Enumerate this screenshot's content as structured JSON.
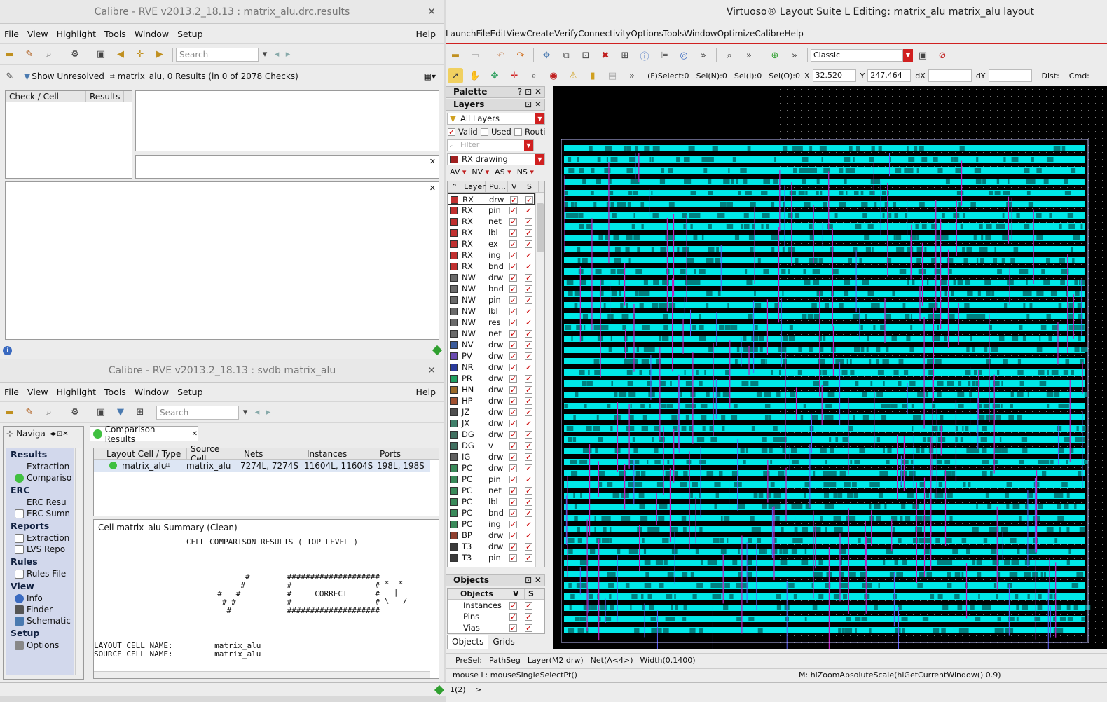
{
  "drc": {
    "title": "Calibre - RVE v2013.2_18.13 : matrix_alu.drc.results",
    "menu": [
      "File",
      "View",
      "Highlight",
      "Tools",
      "Window",
      "Setup"
    ],
    "help": "Help",
    "search_placeholder": "Search",
    "show_unresolved": "Show Unresolved",
    "summary": "matrix_alu, 0 Results (in 0 of 2078 Checks)",
    "col_check": "Check / Cell",
    "col_results": "Results"
  },
  "lvs": {
    "title": "Calibre - RVE v2013.2_18.13 : svdb matrix_alu",
    "menu": [
      "File",
      "View",
      "Highlight",
      "Tools",
      "Window",
      "Setup"
    ],
    "help": "Help",
    "search_placeholder": "Search",
    "nav_tab": "Naviga",
    "nav": [
      {
        "section": "Results",
        "items": [
          {
            "label": "Extraction",
            "icon": "extraction-icon"
          },
          {
            "label": "Compariso",
            "icon": "comparison-smiley-icon"
          }
        ]
      },
      {
        "section": "ERC",
        "items": [
          {
            "label": "ERC Resu",
            "icon": "check-icon"
          },
          {
            "label": "ERC Sumn",
            "icon": "document-icon"
          }
        ]
      },
      {
        "section": "Reports",
        "items": [
          {
            "label": "Extraction",
            "icon": "document-icon"
          },
          {
            "label": "LVS Repo",
            "icon": "document-icon"
          }
        ]
      },
      {
        "section": "Rules",
        "items": [
          {
            "label": "Rules File",
            "icon": "rules-icon"
          }
        ]
      },
      {
        "section": "View",
        "items": [
          {
            "label": "Info",
            "icon": "info-icon"
          },
          {
            "label": "Finder",
            "icon": "binoculars-icon"
          },
          {
            "label": "Schematic",
            "icon": "schematic-icon"
          }
        ]
      },
      {
        "section": "Setup",
        "items": [
          {
            "label": "Options",
            "icon": "options-icon"
          }
        ]
      }
    ],
    "tab_label": "Comparison Results",
    "columns": [
      "Layout Cell / Type",
      "Source Cell",
      "Nets",
      "Instances",
      "Ports"
    ],
    "row": {
      "layout_cell": "matrix_alu",
      "source_cell": "matrix_alu",
      "nets": "7274L, 7274S",
      "instances": "11604L, 11604S",
      "ports": "198L, 198S"
    },
    "summary_title": "Cell matrix_alu Summary (Clean)",
    "report_heading": "CELL COMPARISON RESULTS ( TOP LEVEL )",
    "report_art": "                #        ####################\n               #         #                  #\n          #   #          #     CORRECT      #\n           # #           #                  #\n            #            ####################",
    "smiley": " *  *\n   |\n \\___/",
    "layout_cell_line": "LAYOUT CELL NAME:         matrix_alu",
    "source_cell_line": "SOURCE CELL NAME:         matrix_alu"
  },
  "virtuoso": {
    "title": "Virtuoso® Layout Suite L Editing: matrix_alu matrix_alu layout",
    "menu": [
      "Launch",
      "File",
      "Edit",
      "View",
      "Create",
      "Verify",
      "Connectivity",
      "Options",
      "Tools",
      "Window",
      "Optimize",
      "Calibre",
      "Help"
    ],
    "workspace": "Classic",
    "fselect": "(F)Select:0",
    "seln": "Sel(N):0",
    "seli": "Sel(I):0",
    "selo": "Sel(O):0",
    "x_label": "X",
    "x_value": "32.520",
    "y_label": "Y",
    "y_value": "247.464",
    "dx_label": "dX",
    "dy_label": "dY",
    "dist_label": "Dist:",
    "cmd_label": "Cmd:",
    "palette": "Palette",
    "layers_title": "Layers",
    "all_layers": "All Layers",
    "valid": "Valid",
    "used": "Used",
    "routing": "Routi",
    "filter": "Filter",
    "current_layer": "RX drawing",
    "filters_row": [
      "AV",
      "NV",
      "AS",
      "NS"
    ],
    "layer_cols": [
      "Layer",
      "Pu...",
      "V",
      "S"
    ],
    "layers": [
      {
        "n": "RX",
        "p": "drw",
        "c": "#c03030"
      },
      {
        "n": "RX",
        "p": "pin",
        "c": "#c03030"
      },
      {
        "n": "RX",
        "p": "net",
        "c": "#c03030"
      },
      {
        "n": "RX",
        "p": "lbl",
        "c": "#c03030"
      },
      {
        "n": "RX",
        "p": "ex",
        "c": "#c03030"
      },
      {
        "n": "RX",
        "p": "ing",
        "c": "#c03030"
      },
      {
        "n": "RX",
        "p": "bnd",
        "c": "#c03030"
      },
      {
        "n": "NW",
        "p": "drw",
        "c": "#6a6a6a"
      },
      {
        "n": "NW",
        "p": "bnd",
        "c": "#6a6a6a"
      },
      {
        "n": "NW",
        "p": "pin",
        "c": "#6a6a6a"
      },
      {
        "n": "NW",
        "p": "lbl",
        "c": "#6a6a6a"
      },
      {
        "n": "NW",
        "p": "res",
        "c": "#6a6a6a"
      },
      {
        "n": "NW",
        "p": "net",
        "c": "#6a6a6a"
      },
      {
        "n": "NV",
        "p": "drw",
        "c": "#3a5a9a"
      },
      {
        "n": "PV",
        "p": "drw",
        "c": "#6a4ab0"
      },
      {
        "n": "NR",
        "p": "drw",
        "c": "#2a3a9a"
      },
      {
        "n": "PR",
        "p": "drw",
        "c": "#20a060"
      },
      {
        "n": "HN",
        "p": "drw",
        "c": "#9a6a2a"
      },
      {
        "n": "HP",
        "p": "drw",
        "c": "#a05030"
      },
      {
        "n": "JZ",
        "p": "drw",
        "c": "#505050"
      },
      {
        "n": "JX",
        "p": "drw",
        "c": "#40806a"
      },
      {
        "n": "DG",
        "p": "drw",
        "c": "#407060"
      },
      {
        "n": "DG",
        "p": "v",
        "c": "#407060"
      },
      {
        "n": "IG",
        "p": "drw",
        "c": "#606060"
      },
      {
        "n": "PC",
        "p": "drw",
        "c": "#3a8a5a"
      },
      {
        "n": "PC",
        "p": "pin",
        "c": "#3a8a5a"
      },
      {
        "n": "PC",
        "p": "net",
        "c": "#3a8a5a"
      },
      {
        "n": "PC",
        "p": "lbl",
        "c": "#3a8a5a"
      },
      {
        "n": "PC",
        "p": "bnd",
        "c": "#3a8a5a"
      },
      {
        "n": "PC",
        "p": "ing",
        "c": "#3a8a5a"
      },
      {
        "n": "BP",
        "p": "drw",
        "c": "#904030"
      },
      {
        "n": "T3",
        "p": "drw",
        "c": "#3a3a3a"
      },
      {
        "n": "T3",
        "p": "pin",
        "c": "#3a3a3a"
      }
    ],
    "objects_title": "Objects",
    "objects_cols": [
      "Objects",
      "V",
      "S"
    ],
    "objects": [
      "Instances",
      "Pins",
      "Vias"
    ],
    "bottom_tabs": [
      "Objects",
      "Grids"
    ],
    "presel": "PreSel:",
    "presel_type": "PathSeg",
    "presel_layer": "Layer(M2 drw)",
    "presel_net": "Net(A<4>)",
    "presel_width": "Width(0.1400)",
    "mouse_l": "mouse L: mouseSingleSelectPt()",
    "mouse_m": "M: hiZoomAbsoluteScale(hiGetCurrentWindow() 0.9)",
    "prompt_num": "1(2)",
    "prompt": ">",
    "colors": {
      "canvas": "#000000",
      "cyan": "#00e8e8",
      "magenta": "#c020c0",
      "accent_red": "#d02020"
    }
  }
}
